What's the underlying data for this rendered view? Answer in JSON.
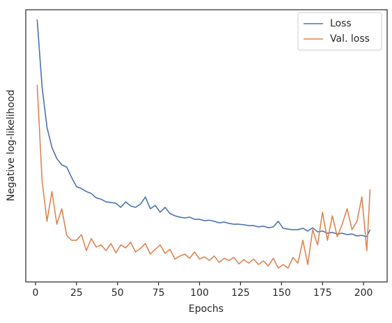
{
  "chart_data": {
    "type": "line",
    "xlabel": "Epochs",
    "ylabel": "Negative log-likelihood",
    "x": [
      1,
      4,
      7,
      10,
      13,
      16,
      19,
      22,
      25,
      28,
      31,
      34,
      37,
      40,
      43,
      46,
      49,
      52,
      55,
      58,
      61,
      64,
      67,
      70,
      73,
      76,
      79,
      82,
      85,
      88,
      91,
      94,
      97,
      100,
      103,
      106,
      109,
      112,
      115,
      118,
      121,
      124,
      127,
      130,
      133,
      136,
      139,
      142,
      145,
      148,
      151,
      154,
      157,
      160,
      163,
      166,
      169,
      172,
      175,
      178,
      181,
      184,
      187,
      190,
      193,
      196,
      199,
      202,
      204
    ],
    "series": [
      {
        "name": "Loss",
        "color": "#4c72b0",
        "values": [
          96.4,
          71.6,
          56.8,
          49.4,
          45.3,
          43.0,
          42.2,
          38.4,
          35.0,
          34.3,
          33.2,
          32.5,
          30.9,
          30.4,
          29.4,
          29.2,
          28.9,
          27.4,
          29.4,
          27.9,
          27.4,
          28.6,
          31.2,
          26.9,
          28.1,
          25.6,
          27.4,
          25.1,
          24.3,
          23.8,
          23.5,
          23.8,
          23.0,
          23.0,
          22.5,
          22.7,
          22.3,
          21.7,
          22.0,
          21.5,
          21.2,
          21.2,
          21.0,
          20.7,
          20.7,
          20.2,
          20.5,
          19.9,
          20.2,
          22.3,
          19.7,
          19.4,
          19.2,
          19.2,
          19.7,
          18.7,
          19.9,
          18.4,
          18.7,
          17.9,
          18.2,
          17.6,
          17.9,
          17.4,
          17.6,
          16.9,
          17.1,
          16.6,
          19.2
        ]
      },
      {
        "name": "Val. loss",
        "color": "#dd8452",
        "values": [
          72.4,
          37.1,
          22.3,
          33.2,
          21.2,
          26.9,
          17.1,
          15.3,
          15.3,
          17.4,
          11.5,
          15.9,
          12.8,
          13.6,
          11.5,
          14.1,
          10.7,
          13.6,
          12.5,
          14.6,
          11.0,
          12.3,
          14.1,
          10.2,
          12.0,
          13.6,
          10.5,
          12.0,
          8.4,
          9.5,
          10.2,
          8.7,
          11.0,
          8.4,
          9.2,
          7.9,
          9.5,
          7.2,
          8.7,
          7.9,
          9.0,
          6.6,
          8.2,
          6.9,
          8.4,
          6.4,
          7.7,
          5.9,
          8.7,
          5.1,
          6.4,
          5.1,
          9.0,
          6.9,
          15.3,
          6.4,
          19.2,
          13.6,
          25.6,
          15.3,
          24.3,
          16.6,
          21.2,
          26.9,
          19.2,
          22.3,
          31.2,
          11.5,
          34.0
        ]
      }
    ],
    "xlim": [
      -5.95,
      214.4
    ],
    "ylim": [
      0,
      100
    ],
    "xticks": [
      0,
      25,
      50,
      75,
      100,
      125,
      150,
      175,
      200
    ],
    "legend": "upper right"
  }
}
